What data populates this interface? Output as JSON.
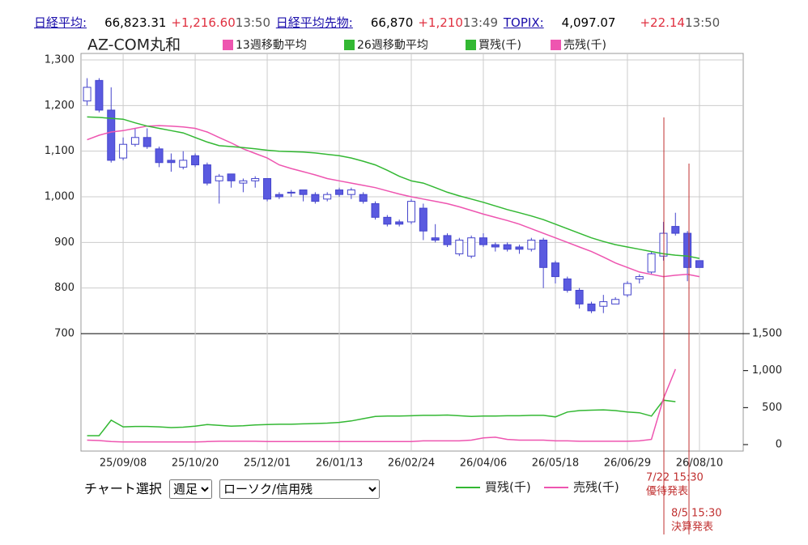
{
  "header": {
    "items": [
      {
        "name": "日経平均:",
        "value": "66,823.31",
        "change": "+1,216.60",
        "time": "13:50"
      },
      {
        "name": "日経平均先物:",
        "value": "66,870",
        "change": "+1,210",
        "time": "13:49"
      },
      {
        "name": "TOPIX:",
        "value": "4,097.07",
        "change": "+22.14",
        "time": "13:50"
      }
    ]
  },
  "chart_data": [
    {
      "type": "candlestick",
      "title": "AZ-COM丸和",
      "categories": [
        null,
        null,
        null,
        "25/09/08",
        null,
        null,
        null,
        null,
        null,
        "25/10/20",
        null,
        null,
        null,
        null,
        null,
        "25/12/01",
        null,
        null,
        null,
        null,
        null,
        "26/01/13",
        null,
        null,
        null,
        null,
        null,
        "26/02/24",
        null,
        null,
        null,
        null,
        null,
        "26/04/06",
        null,
        null,
        null,
        null,
        null,
        "26/05/18",
        null,
        null,
        null,
        null,
        null,
        "26/06/29",
        null,
        null,
        null,
        null,
        null,
        "26/08/10"
      ],
      "open": [
        1210,
        1255,
        1190,
        1085,
        1115,
        1130,
        1105,
        1080,
        1065,
        1090,
        1070,
        1035,
        1050,
        1030,
        1035,
        1040,
        1005,
        1010,
        1015,
        1005,
        995,
        1015,
        1005,
        1005,
        985,
        955,
        945,
        945,
        975,
        910,
        915,
        875,
        870,
        910,
        895,
        895,
        890,
        885,
        905,
        855,
        820,
        795,
        765,
        760,
        765,
        785,
        820,
        835,
        870,
        935,
        920,
        860
      ],
      "high": [
        1260,
        1260,
        1240,
        1130,
        1150,
        1150,
        1110,
        1095,
        1100,
        1095,
        1075,
        1050,
        1050,
        1040,
        1045,
        1040,
        1010,
        1015,
        1015,
        1010,
        1010,
        1020,
        1020,
        1010,
        990,
        960,
        950,
        995,
        985,
        940,
        920,
        910,
        915,
        920,
        900,
        900,
        895,
        910,
        910,
        860,
        825,
        800,
        770,
        785,
        780,
        815,
        830,
        880,
        945,
        965,
        925,
        860
      ],
      "low": [
        1200,
        1185,
        1075,
        1080,
        1110,
        1105,
        1065,
        1055,
        1060,
        1065,
        1025,
        985,
        1020,
        1010,
        1020,
        990,
        995,
        1000,
        990,
        985,
        990,
        1000,
        995,
        985,
        950,
        935,
        935,
        940,
        905,
        900,
        890,
        870,
        865,
        890,
        880,
        880,
        875,
        880,
        800,
        810,
        790,
        755,
        745,
        745,
        765,
        780,
        810,
        830,
        860,
        915,
        815,
        845
      ],
      "close": [
        1240,
        1190,
        1080,
        1115,
        1130,
        1110,
        1075,
        1075,
        1080,
        1070,
        1030,
        1045,
        1035,
        1035,
        1040,
        995,
        1000,
        1010,
        1005,
        990,
        1005,
        1005,
        1015,
        990,
        955,
        940,
        940,
        990,
        925,
        905,
        895,
        905,
        910,
        895,
        890,
        885,
        885,
        905,
        845,
        825,
        795,
        765,
        750,
        770,
        775,
        810,
        825,
        875,
        920,
        920,
        845,
        845
      ],
      "up_color": "#ffffff",
      "down_color": "#5a5ae0",
      "edge_color": "#4444cc",
      "series": [
        {
          "name": "13週移動平均",
          "color": "#ee55b0",
          "values": [
            1125,
            1135,
            1142,
            1145,
            1150,
            1155,
            1156,
            1155,
            1153,
            1150,
            1142,
            1130,
            1118,
            1105,
            1095,
            1085,
            1070,
            1062,
            1055,
            1048,
            1040,
            1035,
            1030,
            1025,
            1020,
            1013,
            1006,
            1000,
            995,
            990,
            985,
            978,
            970,
            962,
            955,
            948,
            940,
            930,
            920,
            910,
            900,
            890,
            880,
            868,
            855,
            845,
            835,
            830,
            825,
            828,
            830,
            825
          ]
        },
        {
          "name": "26週移動平均",
          "color": "#33b833",
          "values": [
            1175,
            1174,
            1172,
            1170,
            1162,
            1155,
            1150,
            1145,
            1140,
            1130,
            1120,
            1112,
            1110,
            1108,
            1105,
            1102,
            1100,
            1099,
            1098,
            1096,
            1093,
            1090,
            1085,
            1078,
            1070,
            1058,
            1045,
            1035,
            1030,
            1020,
            1010,
            1002,
            995,
            988,
            980,
            972,
            965,
            958,
            950,
            940,
            930,
            920,
            910,
            902,
            895,
            890,
            885,
            880,
            875,
            872,
            870,
            865
          ]
        }
      ],
      "ylim": [
        700,
        1300
      ],
      "yticks": [
        {
          "value": 700,
          "label": "700"
        },
        {
          "value": 800,
          "label": "800"
        },
        {
          "value": 900,
          "label": "900"
        },
        {
          "value": 1000,
          "label": "1,000"
        },
        {
          "value": 1100,
          "label": "1,100"
        },
        {
          "value": 1200,
          "label": "1,200"
        },
        {
          "value": 1300,
          "label": "1,300"
        }
      ],
      "grid": true
    },
    {
      "type": "line",
      "series": [
        {
          "name": "買残(千)",
          "color": "#33b833",
          "axis": "y2",
          "values": [
            120,
            120,
            330,
            240,
            245,
            245,
            240,
            230,
            235,
            250,
            270,
            260,
            250,
            255,
            265,
            270,
            275,
            275,
            280,
            285,
            290,
            300,
            320,
            350,
            380,
            385,
            385,
            390,
            395,
            395,
            400,
            390,
            380,
            385,
            385,
            390,
            390,
            395,
            395,
            375,
            440,
            460,
            465,
            470,
            460,
            440,
            430,
            385,
            600,
            580,
            null,
            null
          ]
        },
        {
          "name": "売残(千)",
          "color": "#ee55b0",
          "axis": "y2",
          "values": [
            60,
            55,
            40,
            35,
            35,
            35,
            35,
            35,
            35,
            35,
            40,
            45,
            45,
            45,
            45,
            40,
            40,
            40,
            40,
            40,
            40,
            40,
            40,
            40,
            40,
            40,
            40,
            40,
            50,
            50,
            50,
            50,
            60,
            90,
            100,
            70,
            60,
            60,
            60,
            50,
            50,
            45,
            45,
            45,
            45,
            45,
            50,
            70,
            620,
            1020,
            null,
            null
          ]
        }
      ],
      "y2lim": [
        0,
        1500
      ],
      "y2ticks": [
        0,
        {
          "value": 500,
          "label": "500"
        },
        {
          "value": 1000,
          "label": "1,000"
        },
        {
          "value": 1500,
          "label": "1,500"
        }
      ],
      "annotations": [
        {
          "time": "7/22 15:30",
          "text": "優待発表"
        },
        {
          "time": "8/5 15:30",
          "text": "決算発表"
        }
      ]
    }
  ],
  "controls": {
    "label": "チャート選択",
    "period": "週足",
    "chart_kind": "ローソク/信用残"
  }
}
